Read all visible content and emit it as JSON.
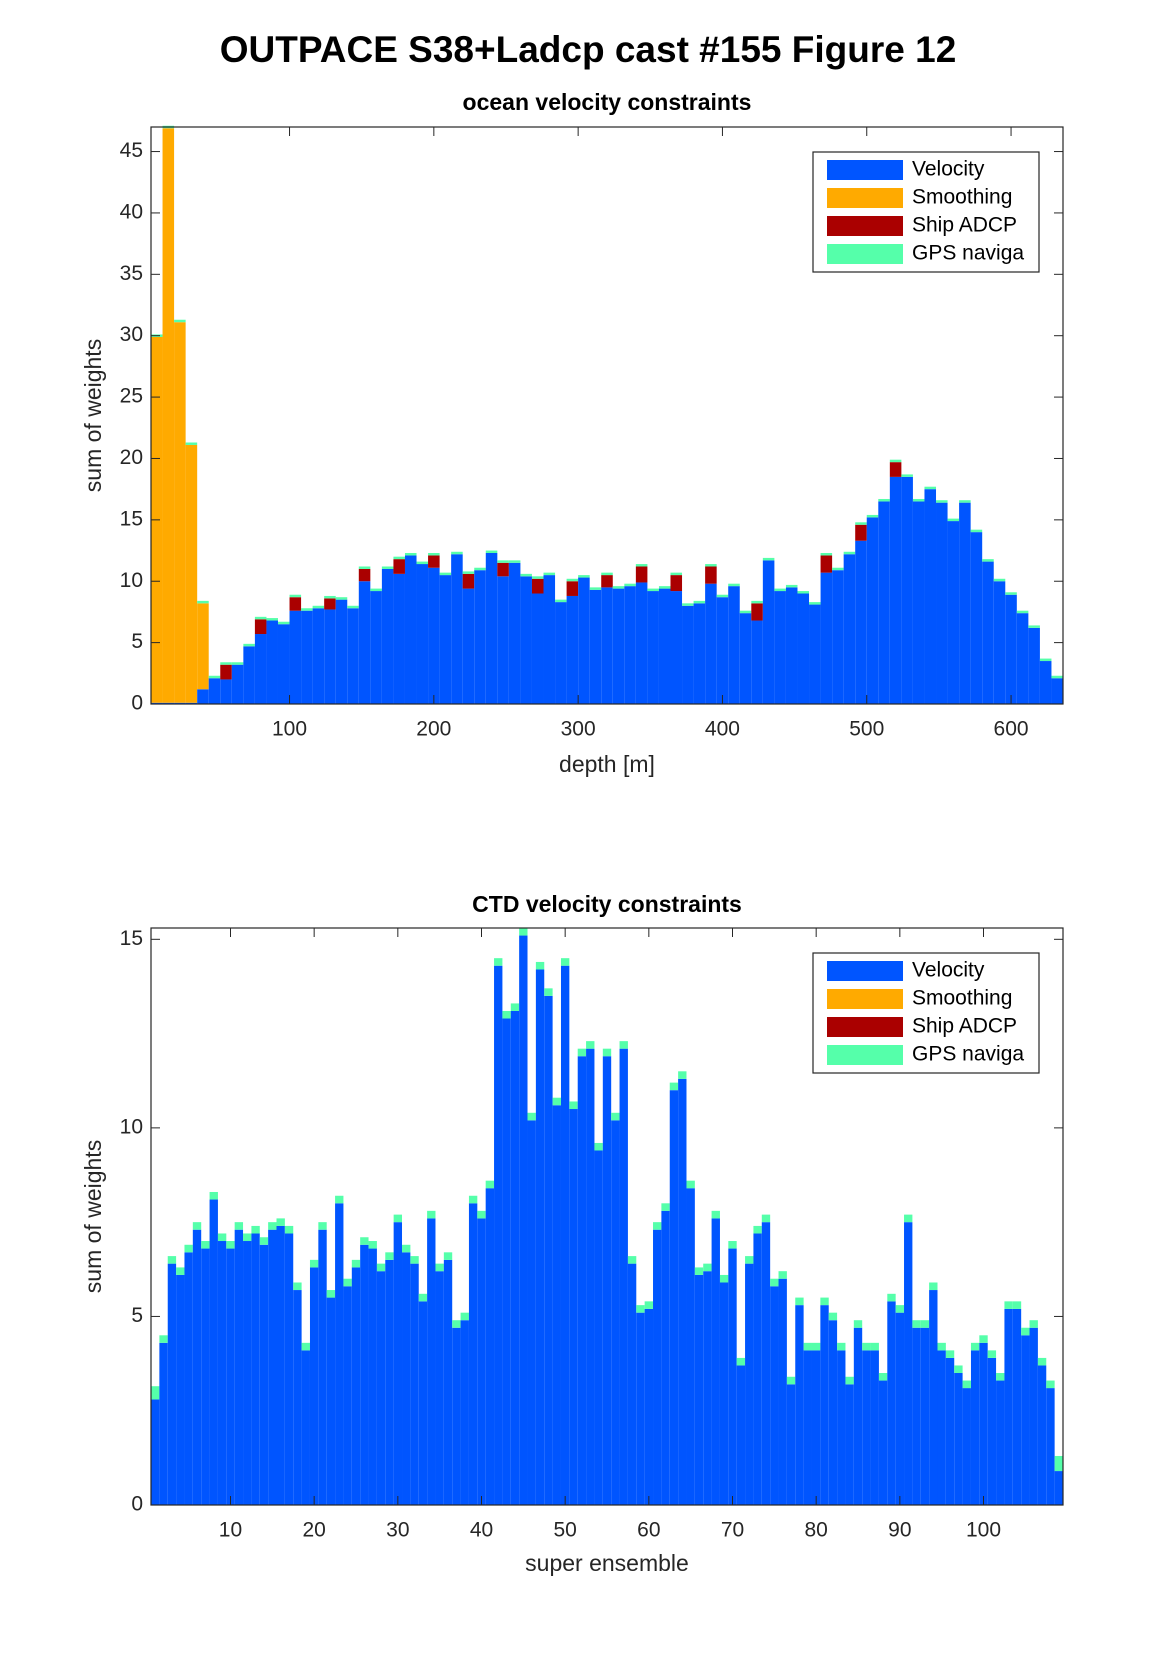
{
  "title": "OUTPACE S38+Ladcp cast #155  Figure 12",
  "chart_data": [
    {
      "type": "bar",
      "stacked": true,
      "title": "ocean velocity constraints",
      "xlabel": "depth [m]",
      "ylabel": "sum of weights",
      "x": [
        8,
        16,
        24,
        32,
        40,
        48,
        56,
        64,
        72,
        80,
        88,
        96,
        104,
        112,
        120,
        128,
        136,
        144,
        152,
        160,
        168,
        176,
        184,
        192,
        200,
        208,
        216,
        224,
        232,
        240,
        248,
        256,
        264,
        272,
        280,
        288,
        296,
        304,
        312,
        320,
        328,
        336,
        344,
        352,
        360,
        368,
        376,
        384,
        392,
        400,
        408,
        416,
        424,
        432,
        440,
        448,
        456,
        464,
        472,
        480,
        488,
        496,
        504,
        512,
        520,
        528,
        536,
        544,
        552,
        560,
        568,
        576,
        584,
        592,
        600,
        608,
        616,
        624,
        632
      ],
      "series": [
        {
          "name": "Velocity",
          "color": "#0055ff",
          "values": [
            0.1,
            0.1,
            0.1,
            0.1,
            1.2,
            2.1,
            2.0,
            3.2,
            4.7,
            5.7,
            6.8,
            6.5,
            7.6,
            7.6,
            7.8,
            7.7,
            8.5,
            7.8,
            10.0,
            9.2,
            11.0,
            10.6,
            12.1,
            11.4,
            11.1,
            10.5,
            12.2,
            9.4,
            10.9,
            12.3,
            10.4,
            11.5,
            10.4,
            9.0,
            10.5,
            8.3,
            8.8,
            10.3,
            9.3,
            9.5,
            9.4,
            9.6,
            9.9,
            9.2,
            9.4,
            9.2,
            8.0,
            8.2,
            9.8,
            8.7,
            9.6,
            7.4,
            6.8,
            11.7,
            9.2,
            9.5,
            9.0,
            8.1,
            10.7,
            10.9,
            12.2,
            13.3,
            15.2,
            16.5,
            18.5,
            18.5,
            16.5,
            17.5,
            16.4,
            14.9,
            16.4,
            14.0,
            11.6,
            10.0,
            8.9,
            7.4,
            6.2,
            3.5,
            2.1
          ]
        },
        {
          "name": "Smoothing",
          "color": "#ffaa00",
          "values": [
            29.8,
            46.8,
            31.0,
            21.0,
            7.0,
            0,
            0,
            0,
            0,
            0,
            0,
            0,
            0,
            0,
            0,
            0,
            0,
            0,
            0,
            0,
            0,
            0,
            0,
            0,
            0,
            0,
            0,
            0,
            0,
            0,
            0,
            0,
            0,
            0,
            0,
            0,
            0,
            0,
            0,
            0,
            0,
            0,
            0,
            0,
            0,
            0,
            0,
            0,
            0,
            0,
            0,
            0,
            0,
            0,
            0,
            0,
            0,
            0,
            0,
            0,
            0,
            0,
            0,
            0,
            0,
            0,
            0,
            0,
            0,
            0,
            0,
            0,
            0,
            0,
            0,
            0,
            0,
            0,
            0
          ]
        },
        {
          "name": "Ship ADCP",
          "color": "#aa0000",
          "values": [
            0,
            0,
            0,
            0,
            0,
            0,
            1.2,
            0,
            0,
            1.2,
            0,
            0,
            1.1,
            0,
            0,
            0.9,
            0,
            0,
            1.0,
            0,
            0,
            1.2,
            0,
            0,
            1.0,
            0,
            0,
            1.2,
            0,
            0,
            1.1,
            0,
            0,
            1.2,
            0,
            0,
            1.2,
            0,
            0,
            1.0,
            0,
            0,
            1.3,
            0,
            0,
            1.3,
            0,
            0,
            1.4,
            0,
            0,
            0,
            1.4,
            0,
            0,
            0,
            0,
            0,
            1.4,
            0,
            0,
            1.3,
            0,
            0,
            1.2,
            0,
            0,
            0,
            0,
            0,
            0,
            0,
            0,
            0,
            0,
            0,
            0,
            0,
            0
          ]
        },
        {
          "name": "GPS naviga",
          "color": "#55ffaa",
          "values": [
            0.2,
            0.2,
            0.2,
            0.2,
            0.2,
            0.2,
            0.2,
            0.2,
            0.2,
            0.2,
            0.2,
            0.2,
            0.2,
            0.2,
            0.2,
            0.2,
            0.2,
            0.2,
            0.2,
            0.2,
            0.2,
            0.2,
            0.2,
            0.2,
            0.2,
            0.2,
            0.2,
            0.2,
            0.2,
            0.2,
            0.2,
            0.2,
            0.2,
            0.2,
            0.2,
            0.2,
            0.2,
            0.2,
            0.2,
            0.2,
            0.2,
            0.2,
            0.2,
            0.2,
            0.2,
            0.2,
            0.2,
            0.2,
            0.2,
            0.2,
            0.2,
            0.2,
            0.2,
            0.2,
            0.2,
            0.2,
            0.2,
            0.2,
            0.2,
            0.2,
            0.2,
            0.2,
            0.2,
            0.2,
            0.2,
            0.2,
            0.2,
            0.2,
            0.2,
            0.2,
            0.2,
            0.2,
            0.2,
            0.2,
            0.2,
            0.2,
            0.2,
            0.2,
            0.2
          ]
        }
      ],
      "xlim": [
        4,
        636
      ],
      "ylim": [
        0,
        47
      ],
      "xticks": [
        100,
        200,
        300,
        400,
        500,
        600
      ],
      "yticks": [
        0,
        5,
        10,
        15,
        20,
        25,
        30,
        35,
        40,
        45
      ],
      "legend": "upper right"
    },
    {
      "type": "bar",
      "stacked": true,
      "title": "CTD velocity constraints",
      "xlabel": "super ensemble",
      "ylabel": "sum of weights",
      "x": [
        1,
        2,
        3,
        4,
        5,
        6,
        7,
        8,
        9,
        10,
        11,
        12,
        13,
        14,
        15,
        16,
        17,
        18,
        19,
        20,
        21,
        22,
        23,
        24,
        25,
        26,
        27,
        28,
        29,
        30,
        31,
        32,
        33,
        34,
        35,
        36,
        37,
        38,
        39,
        40,
        41,
        42,
        43,
        44,
        45,
        46,
        47,
        48,
        49,
        50,
        51,
        52,
        53,
        54,
        55,
        56,
        57,
        58,
        59,
        60,
        61,
        62,
        63,
        64,
        65,
        66,
        67,
        68,
        69,
        70,
        71,
        72,
        73,
        74,
        75,
        76,
        77,
        78,
        79,
        80,
        81,
        82,
        83,
        84,
        85,
        86,
        87,
        88,
        89,
        90,
        91,
        92,
        93,
        94,
        95,
        96,
        97,
        98,
        99,
        100,
        101,
        102,
        103,
        104,
        105,
        106,
        107,
        108,
        109
      ],
      "series": [
        {
          "name": "Velocity",
          "color": "#0055ff",
          "values": [
            2.8,
            4.3,
            6.4,
            6.1,
            6.7,
            7.3,
            6.8,
            8.1,
            7.0,
            6.8,
            7.3,
            7.0,
            7.2,
            6.9,
            7.3,
            7.4,
            7.2,
            5.7,
            4.1,
            6.3,
            7.3,
            5.5,
            8.0,
            5.8,
            6.3,
            6.9,
            6.8,
            6.2,
            6.5,
            7.5,
            6.7,
            6.4,
            5.4,
            7.6,
            6.2,
            6.5,
            4.7,
            4.9,
            8.0,
            7.6,
            8.4,
            14.3,
            12.9,
            13.1,
            15.1,
            10.2,
            14.2,
            13.5,
            10.6,
            14.3,
            10.5,
            11.9,
            12.1,
            9.4,
            11.9,
            10.2,
            12.1,
            6.4,
            5.1,
            5.2,
            7.3,
            7.8,
            11.0,
            11.3,
            8.4,
            6.1,
            6.2,
            7.6,
            5.9,
            6.8,
            3.7,
            6.4,
            7.2,
            7.5,
            5.8,
            6.0,
            3.2,
            5.3,
            4.1,
            4.1,
            5.3,
            4.9,
            4.1,
            3.2,
            4.7,
            4.1,
            4.1,
            3.3,
            5.4,
            5.1,
            7.5,
            4.7,
            4.7,
            5.7,
            4.1,
            3.9,
            3.5,
            3.1,
            4.1,
            4.3,
            3.9,
            3.3,
            5.2,
            5.2,
            4.5,
            4.7,
            3.7,
            3.1,
            0.9
          ]
        },
        {
          "name": "Smoothing",
          "color": "#ffaa00",
          "values": [
            0,
            0,
            0,
            0,
            0,
            0,
            0,
            0,
            0,
            0,
            0,
            0,
            0,
            0,
            0,
            0,
            0,
            0,
            0,
            0,
            0,
            0,
            0,
            0,
            0,
            0,
            0,
            0,
            0,
            0,
            0,
            0,
            0,
            0,
            0,
            0,
            0,
            0,
            0,
            0,
            0,
            0,
            0,
            0,
            0,
            0,
            0,
            0,
            0,
            0,
            0,
            0,
            0,
            0,
            0,
            0,
            0,
            0,
            0,
            0,
            0,
            0,
            0,
            0,
            0,
            0,
            0,
            0,
            0,
            0,
            0,
            0,
            0,
            0,
            0,
            0,
            0,
            0,
            0,
            0,
            0,
            0,
            0,
            0,
            0,
            0,
            0,
            0,
            0,
            0,
            0,
            0,
            0,
            0,
            0,
            0,
            0,
            0,
            0,
            0,
            0,
            0,
            0,
            0,
            0,
            0,
            0,
            0,
            0
          ]
        },
        {
          "name": "Ship ADCP",
          "color": "#aa0000",
          "values": [
            0,
            0,
            0,
            0,
            0,
            0,
            0,
            0,
            0,
            0,
            0,
            0,
            0,
            0,
            0,
            0,
            0,
            0,
            0,
            0,
            0,
            0,
            0,
            0,
            0,
            0,
            0,
            0,
            0,
            0,
            0,
            0,
            0,
            0,
            0,
            0,
            0,
            0,
            0,
            0,
            0,
            0,
            0,
            0,
            0,
            0,
            0,
            0,
            0,
            0,
            0,
            0,
            0,
            0,
            0,
            0,
            0,
            0,
            0,
            0,
            0,
            0,
            0,
            0,
            0,
            0,
            0,
            0,
            0,
            0,
            0,
            0,
            0,
            0,
            0,
            0,
            0,
            0,
            0,
            0,
            0,
            0,
            0,
            0,
            0,
            0,
            0,
            0,
            0,
            0,
            0,
            0,
            0,
            0,
            0,
            0,
            0,
            0,
            0,
            0,
            0,
            0,
            0,
            0,
            0,
            0,
            0,
            0,
            0
          ]
        },
        {
          "name": "GPS naviga",
          "color": "#55ffaa",
          "values": [
            0.35,
            0.2,
            0.2,
            0.2,
            0.2,
            0.2,
            0.2,
            0.2,
            0.2,
            0.2,
            0.2,
            0.2,
            0.2,
            0.2,
            0.2,
            0.2,
            0.2,
            0.2,
            0.2,
            0.2,
            0.2,
            0.2,
            0.2,
            0.2,
            0.2,
            0.2,
            0.2,
            0.2,
            0.2,
            0.2,
            0.2,
            0.2,
            0.2,
            0.2,
            0.2,
            0.2,
            0.2,
            0.2,
            0.2,
            0.2,
            0.2,
            0.2,
            0.2,
            0.2,
            0.2,
            0.2,
            0.2,
            0.2,
            0.2,
            0.2,
            0.2,
            0.2,
            0.2,
            0.2,
            0.2,
            0.2,
            0.2,
            0.2,
            0.2,
            0.2,
            0.2,
            0.2,
            0.2,
            0.2,
            0.2,
            0.2,
            0.2,
            0.2,
            0.2,
            0.2,
            0.2,
            0.2,
            0.2,
            0.2,
            0.2,
            0.2,
            0.2,
            0.2,
            0.2,
            0.2,
            0.2,
            0.2,
            0.2,
            0.2,
            0.2,
            0.2,
            0.2,
            0.2,
            0.2,
            0.2,
            0.2,
            0.2,
            0.2,
            0.2,
            0.2,
            0.2,
            0.2,
            0.2,
            0.2,
            0.2,
            0.2,
            0.2,
            0.2,
            0.2,
            0.2,
            0.2,
            0.2,
            0.2,
            0.4
          ]
        }
      ],
      "xlim": [
        0.5,
        109.5
      ],
      "ylim": [
        0,
        15.3
      ],
      "xticks": [
        10,
        20,
        30,
        40,
        50,
        60,
        70,
        80,
        90,
        100
      ],
      "yticks": [
        0,
        5,
        10,
        15
      ],
      "legend": "upper right"
    }
  ]
}
